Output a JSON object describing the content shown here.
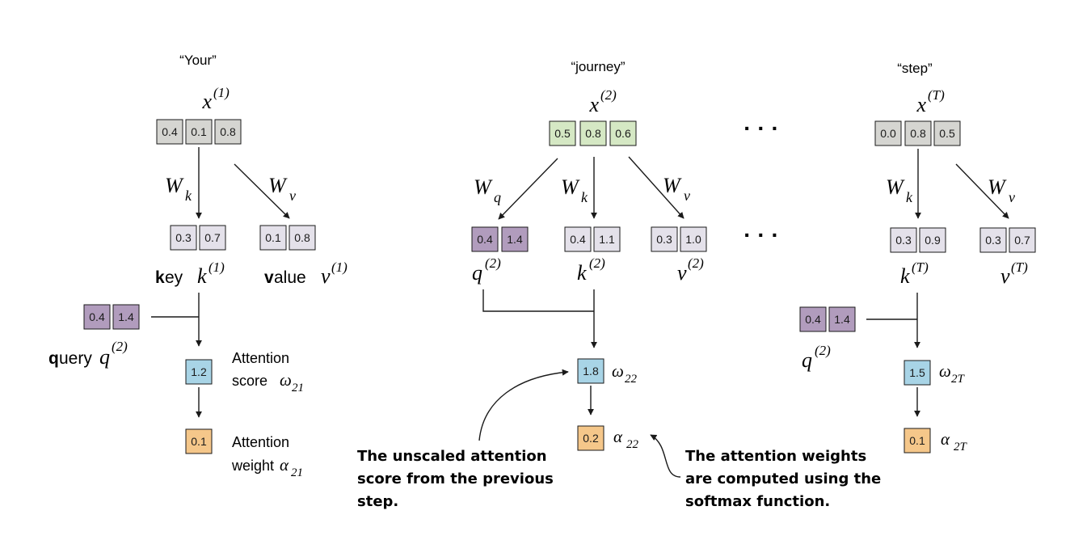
{
  "colors": {
    "input_gray": "#d5d5d1",
    "input_green": "#d5e8c4",
    "query_purple": "#b19cbd",
    "key_value_lavender": "#e4e1ea",
    "score_blue": "#a8d4e6",
    "weight_orange": "#f5c78a",
    "stroke": "#1a1a1a"
  },
  "tokens": {
    "t1": {
      "word": "“Your”",
      "x_sym": "x",
      "x_sup": "(1)",
      "x_vals": [
        "0.4",
        "0.1",
        "0.8"
      ],
      "wk": "W",
      "wk_sub": "k",
      "wv": "W",
      "wv_sub": "v",
      "k_vals": [
        "0.3",
        "0.7"
      ],
      "v_vals": [
        "0.1",
        "0.8"
      ],
      "key_bold": "k",
      "key_rest": "ey",
      "key_sym": "k",
      "key_sup": "(1)",
      "value_bold": "v",
      "value_rest": "alue",
      "value_sym": "v",
      "value_sup": "(1)",
      "q_vals": [
        "0.4",
        "1.4"
      ],
      "query_bold": "q",
      "query_rest": "uery",
      "query_sym": "q",
      "query_sup": "(2)",
      "score": "1.2",
      "score_label1": "Attention",
      "score_label2": "score",
      "omega": "ω",
      "omega_sub": "21",
      "weight": "0.1",
      "weight_label1": "Attention",
      "weight_label2": "weight",
      "alpha": "α",
      "alpha_sub": "21"
    },
    "t2": {
      "word": "“journey”",
      "x_sym": "x",
      "x_sup": "(2)",
      "x_vals": [
        "0.5",
        "0.8",
        "0.6"
      ],
      "wq": "W",
      "wq_sub": "q",
      "wk": "W",
      "wk_sub": "k",
      "wv": "W",
      "wv_sub": "v",
      "q_vals": [
        "0.4",
        "1.4"
      ],
      "k_vals": [
        "0.4",
        "1.1"
      ],
      "v_vals": [
        "0.3",
        "1.0"
      ],
      "q_sym": "q",
      "q_sup": "(2)",
      "k_sym": "k",
      "k_sup": "(2)",
      "v_sym": "v",
      "v_sup": "(2)",
      "score": "1.8",
      "omega": "ω",
      "omega_sub": "22",
      "weight": "0.2",
      "alpha": "α",
      "alpha_sub": "22"
    },
    "tT": {
      "word": "“step”",
      "x_sym": "x",
      "x_sup": "(T)",
      "x_vals": [
        "0.0",
        "0.8",
        "0.5"
      ],
      "wk": "W",
      "wk_sub": "k",
      "wv": "W",
      "wv_sub": "v",
      "k_vals": [
        "0.3",
        "0.9"
      ],
      "v_vals": [
        "0.3",
        "0.7"
      ],
      "k_sym": "k",
      "k_sup": "(T)",
      "v_sym": "v",
      "v_sup": "(T)",
      "q_vals": [
        "0.4",
        "1.4"
      ],
      "q_sym": "q",
      "q_sup": "(2)",
      "score": "1.5",
      "omega": "ω",
      "omega_sub": "2T",
      "weight": "0.1",
      "alpha": "α",
      "alpha_sub": "2T"
    }
  },
  "ellipsis": {
    "top": "· · ·",
    "middle": "· · ·"
  },
  "annotations": {
    "unscaled": [
      "The unscaled attention",
      "score from the previous",
      "step."
    ],
    "softmax": [
      "The attention weights",
      "are computed using the",
      "softmax function."
    ]
  }
}
